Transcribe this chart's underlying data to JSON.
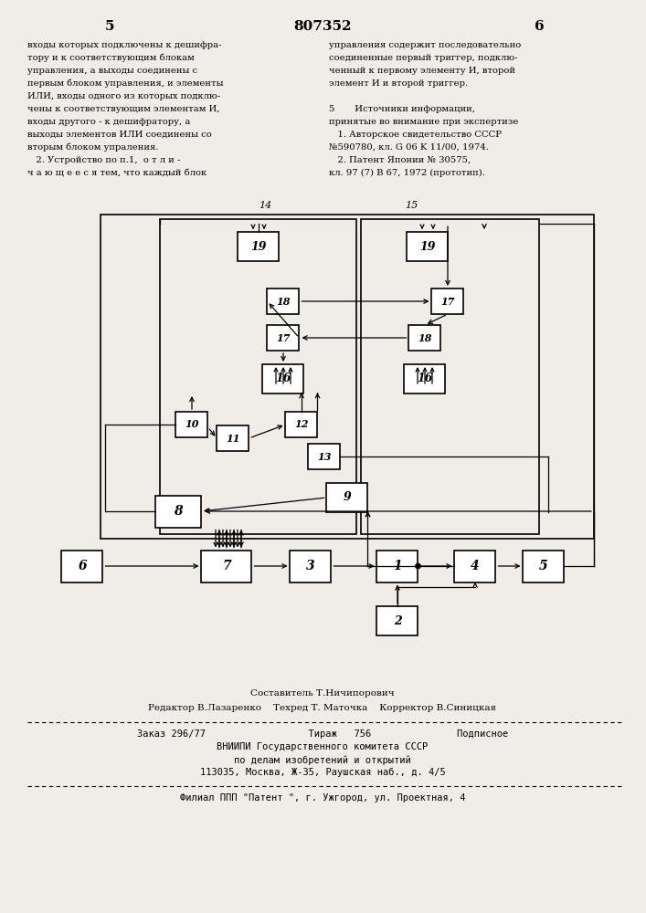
{
  "bg_color": "#f0ede8",
  "title_text": "807352",
  "page_left": "5",
  "page_right": "6",
  "left_text": [
    "входы которых подключены к дешифра-",
    "тору и к соответствующим блокам",
    "управления, а выходы соединены с",
    "первым блоком управления, и элементы",
    "ИЛИ, входы одного из которых подклю-",
    "чены к соответствующим элементам И,",
    "входы другого - к дешифратору, а",
    "выходы элементов ИЛИ соединены со",
    "вторым блоком упраления.",
    "   2. Устройство по п.1,  о т л и -",
    "ч а ю щ е е с я тем, что каждый блок"
  ],
  "right_text": [
    "управления содержит последовательно",
    "соединенные первый триггер, подклю-",
    "ченный к первому элементу И, второй",
    "элемент И и второй триггер.",
    "",
    "5       Источники информации,",
    "принятые во внимание при экспертизе",
    "   1. Авторское свидетельство СССР",
    "№590780, кл. G 06 K 11/00, 1974.",
    "   2. Патент Японии № 30575,",
    "кл. 97 (7) В 67, 1972 (прототип)."
  ],
  "footer_text1": "Составитель Т.Ничипорович",
  "footer_text2": "Редактор В.Лазаренко    Техред Т. Маточка    Корректор В.Синицкая",
  "footer_text3": "Заказ 296/77                  Тираж   756               Подписное",
  "footer_text4": "ВНИИПИ Государственного комитета СССР",
  "footer_text5": "по делам изобретений и открытий",
  "footer_text6": "113035, Москва, Ж-35, Раушская наб., д. 4/5",
  "footer_text7": "Филиал ППП \"Патент \", г. Ужгород, ул. Проектная, 4"
}
